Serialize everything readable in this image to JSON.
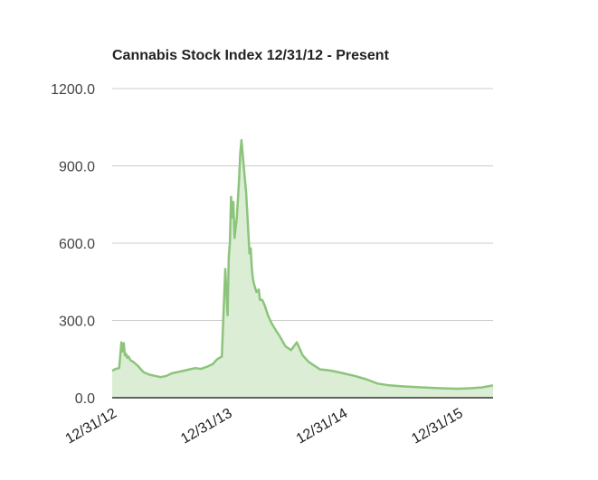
{
  "chart_data": {
    "type": "area",
    "title": "Cannabis Stock Index 12/31/12 - Present",
    "xlabel": "",
    "ylabel": "",
    "ylim": [
      0,
      1200
    ],
    "y_ticks": [
      {
        "value": 0,
        "label": "0.0"
      },
      {
        "value": 300,
        "label": "300.0"
      },
      {
        "value": 600,
        "label": "600.0"
      },
      {
        "value": 900,
        "label": "900.0"
      },
      {
        "value": 1200,
        "label": "1200.0"
      }
    ],
    "x_ticks": [
      {
        "value": 0,
        "label": "12/31/12"
      },
      {
        "value": 1,
        "label": "12/31/13"
      },
      {
        "value": 2,
        "label": "12/31/14"
      },
      {
        "value": 3,
        "label": "12/31/15"
      }
    ],
    "xlim": [
      0,
      3.3
    ],
    "grid": true,
    "legend": "none",
    "series": [
      {
        "color": "#8cc47c",
        "fill": "#dcedd5",
        "x": [
          0,
          0.03,
          0.06,
          0.08,
          0.09,
          0.1,
          0.11,
          0.12,
          0.13,
          0.14,
          0.16,
          0.18,
          0.22,
          0.27,
          0.32,
          0.37,
          0.42,
          0.47,
          0.52,
          0.57,
          0.62,
          0.67,
          0.72,
          0.77,
          0.82,
          0.87,
          0.91,
          0.95,
          0.98,
          1.0,
          1.01,
          1.02,
          1.03,
          1.04,
          1.05,
          1.06,
          1.08,
          1.1,
          1.11,
          1.12,
          1.14,
          1.16,
          1.17,
          1.18,
          1.19,
          1.2,
          1.21,
          1.22,
          1.23,
          1.25,
          1.27,
          1.28,
          1.3,
          1.32,
          1.35,
          1.38,
          1.42,
          1.45,
          1.5,
          1.55,
          1.6,
          1.65,
          1.7,
          1.75,
          1.8,
          1.85,
          1.9,
          1.95,
          2.0,
          2.1,
          2.2,
          2.3,
          2.4,
          2.5,
          2.6,
          2.7,
          2.8,
          2.9,
          3.0,
          3.1,
          3.2,
          3.25,
          3.3
        ],
        "values": [
          105,
          112,
          115,
          215,
          180,
          212,
          165,
          170,
          155,
          160,
          145,
          140,
          125,
          100,
          90,
          85,
          80,
          85,
          95,
          100,
          105,
          110,
          115,
          112,
          120,
          130,
          150,
          160,
          500,
          320,
          550,
          600,
          780,
          700,
          760,
          620,
          700,
          850,
          950,
          1000,
          900,
          800,
          720,
          640,
          560,
          580,
          500,
          460,
          440,
          410,
          420,
          380,
          380,
          360,
          320,
          290,
          260,
          240,
          200,
          185,
          215,
          165,
          140,
          125,
          110,
          108,
          105,
          100,
          95,
          85,
          72,
          55,
          48,
          45,
          42,
          40,
          38,
          36,
          35,
          37,
          40,
          44,
          48
        ]
      }
    ]
  }
}
